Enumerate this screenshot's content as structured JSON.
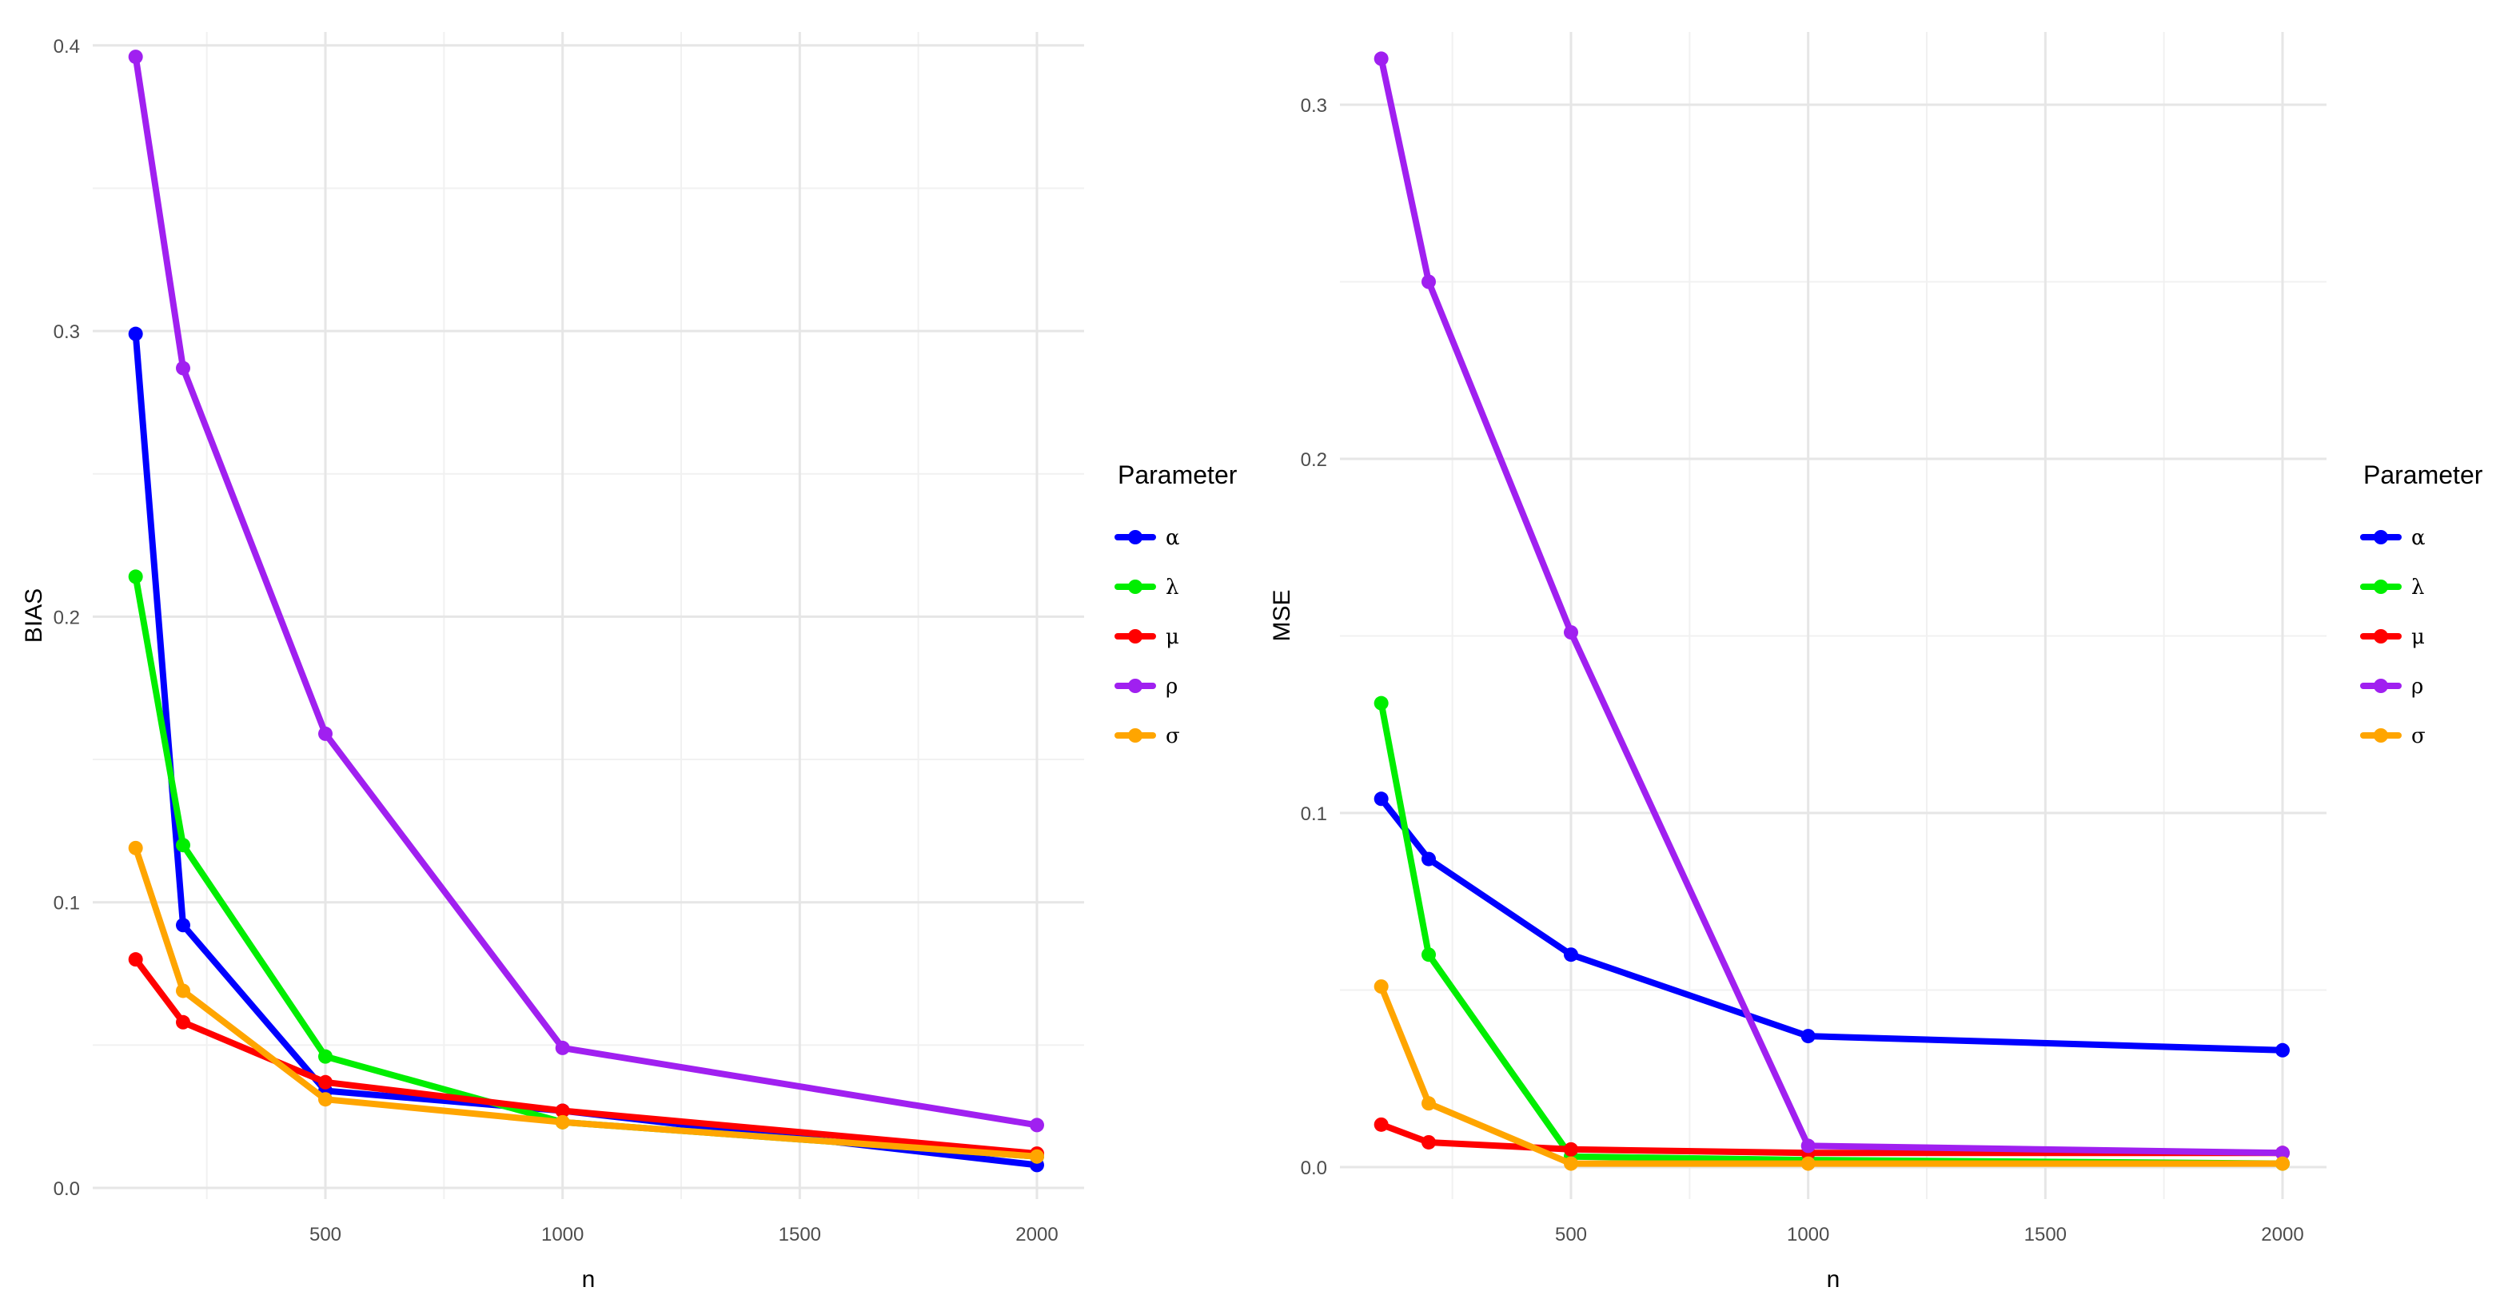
{
  "legend": {
    "title": "Parameter"
  },
  "chart_data": [
    {
      "type": "line",
      "title": "",
      "xlabel": "n",
      "ylabel": "BIAS",
      "xlim": [
        100,
        2000
      ],
      "ylim": [
        0,
        0.4
      ],
      "x_ticks": [
        "500",
        "1000",
        "1500",
        "2000"
      ],
      "y_ticks": [
        "0.0",
        "0.1",
        "0.2",
        "0.3",
        "0.4"
      ],
      "grid": true,
      "legend_position": "right",
      "x": [
        100,
        200,
        500,
        1000,
        2000
      ],
      "series": [
        {
          "name": "α",
          "color": "#0000ff",
          "values": [
            0.299,
            0.092,
            0.034,
            0.027,
            0.008
          ]
        },
        {
          "name": "λ",
          "color": "#00ee00",
          "values": [
            0.214,
            0.12,
            0.046,
            0.023,
            0.011
          ]
        },
        {
          "name": "μ",
          "color": "#ff0000",
          "values": [
            0.08,
            0.058,
            0.037,
            0.027,
            0.012
          ]
        },
        {
          "name": "ρ",
          "color": "#a020f0",
          "values": [
            0.396,
            0.287,
            0.159,
            0.049,
            0.022
          ]
        },
        {
          "name": "σ",
          "color": "#ffa500",
          "values": [
            0.119,
            0.069,
            0.031,
            0.023,
            0.011
          ]
        }
      ]
    },
    {
      "type": "line",
      "title": "",
      "xlabel": "n",
      "ylabel": "MSE",
      "xlim": [
        100,
        2000
      ],
      "ylim": [
        0,
        0.31
      ],
      "x_ticks": [
        "500",
        "1000",
        "1500",
        "2000"
      ],
      "y_ticks": [
        "0.0",
        "0.1",
        "0.2",
        "0.3"
      ],
      "grid": true,
      "legend_position": "right",
      "x": [
        100,
        200,
        500,
        1000,
        2000
      ],
      "series": [
        {
          "name": "α",
          "color": "#0000ff",
          "values": [
            0.104,
            0.087,
            0.06,
            0.037,
            0.033
          ]
        },
        {
          "name": "λ",
          "color": "#00ee00",
          "values": [
            0.131,
            0.06,
            0.003,
            0.002,
            0.001
          ]
        },
        {
          "name": "μ",
          "color": "#ff0000",
          "values": [
            0.012,
            0.007,
            0.005,
            0.004,
            0.004
          ]
        },
        {
          "name": "ρ",
          "color": "#a020f0",
          "values": [
            0.313,
            0.25,
            0.151,
            0.006,
            0.004
          ]
        },
        {
          "name": "σ",
          "color": "#ffa500",
          "values": [
            0.051,
            0.018,
            0.001,
            0.001,
            0.001
          ]
        }
      ]
    }
  ]
}
